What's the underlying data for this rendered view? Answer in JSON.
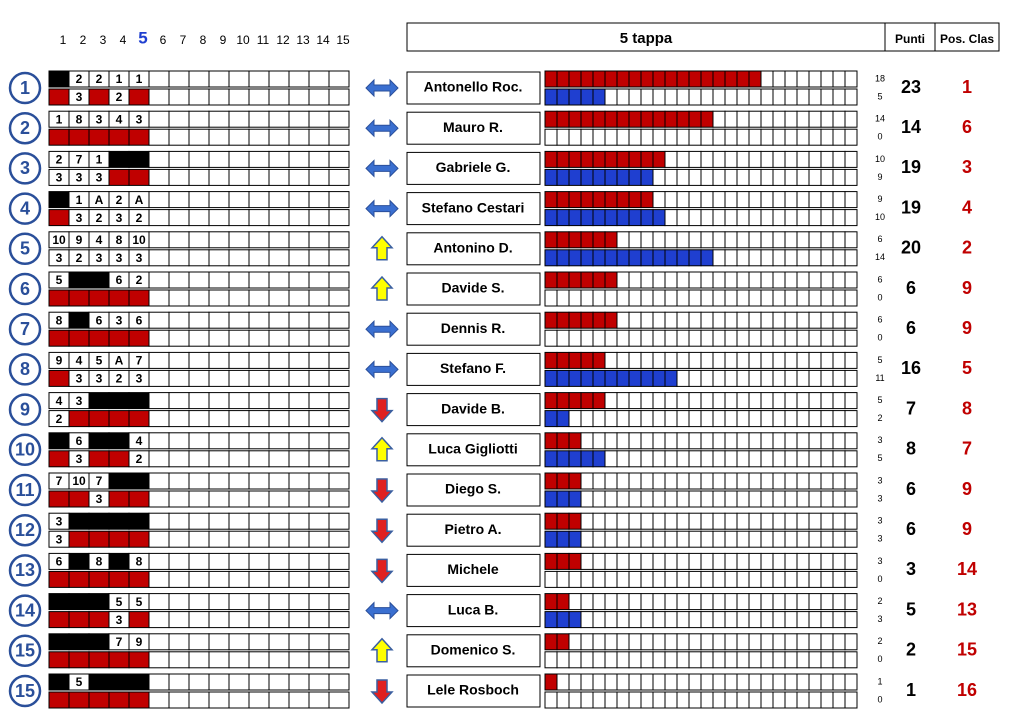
{
  "header": {
    "tappe": [
      1,
      2,
      3,
      4,
      5,
      6,
      7,
      8,
      9,
      10,
      11,
      12,
      13,
      14,
      15
    ],
    "title": "5 tappa",
    "punti": "Punti",
    "pos": "Pos. Clas"
  },
  "top_fill": "#000000",
  "bottom_fill": "#c00000",
  "red_color": "#c00000",
  "blue_color": "#1f3fd0",
  "rows": [
    {
      "rank": 1,
      "top": [
        null,
        "2",
        "2",
        "1",
        "1"
      ],
      "bottom": [
        null,
        "3",
        null,
        "2",
        null
      ],
      "arrow": "both",
      "name": "Antonello Roc.",
      "red": 18,
      "blue": 5,
      "punti": 23,
      "pos": 1
    },
    {
      "rank": 2,
      "top": [
        "1",
        "8",
        "3",
        "4",
        "3"
      ],
      "bottom": [
        null,
        null,
        null,
        null,
        null
      ],
      "arrow": "both",
      "name": "Mauro R.",
      "red": 14,
      "blue": 0,
      "punti": 14,
      "pos": 6
    },
    {
      "rank": 3,
      "top": [
        "2",
        "7",
        "1",
        null,
        null
      ],
      "bottom": [
        "3",
        "3",
        "3",
        null,
        null
      ],
      "arrow": "both",
      "name": "Gabriele G.",
      "red": 10,
      "blue": 9,
      "punti": 19,
      "pos": 3
    },
    {
      "rank": 4,
      "top": [
        null,
        "1",
        "A",
        "2",
        "A"
      ],
      "bottom": [
        null,
        "3",
        "2",
        "3",
        "2"
      ],
      "arrow": "both",
      "name": "Stefano Cestari",
      "red": 9,
      "blue": 10,
      "punti": 19,
      "pos": 4
    },
    {
      "rank": 5,
      "top": [
        "10",
        "9",
        "4",
        "8",
        "10"
      ],
      "bottom": [
        "3",
        "2",
        "3",
        "3",
        "3"
      ],
      "arrow": "up",
      "name": "Antonino D.",
      "red": 6,
      "blue": 14,
      "punti": 20,
      "pos": 2
    },
    {
      "rank": 6,
      "top": [
        "5",
        null,
        null,
        "6",
        "2"
      ],
      "bottom": [
        null,
        null,
        null,
        null,
        null
      ],
      "arrow": "up",
      "name": "Davide S.",
      "red": 6,
      "blue": 0,
      "punti": 6,
      "pos": 9
    },
    {
      "rank": 7,
      "top": [
        "8",
        null,
        "6",
        "3",
        "6"
      ],
      "bottom": [
        null,
        null,
        null,
        null,
        null
      ],
      "arrow": "both",
      "name": "Dennis R.",
      "red": 6,
      "blue": 0,
      "punti": 6,
      "pos": 9
    },
    {
      "rank": 8,
      "top": [
        "9",
        "4",
        "5",
        "A",
        "7"
      ],
      "bottom": [
        null,
        "3",
        "3",
        "2",
        "3"
      ],
      "arrow": "both",
      "name": "Stefano F.",
      "red": 5,
      "blue": 11,
      "punti": 16,
      "pos": 5
    },
    {
      "rank": 9,
      "top": [
        "4",
        "3",
        null,
        null,
        null
      ],
      "bottom": [
        "2",
        null,
        null,
        null,
        null
      ],
      "arrow": "down",
      "name": "Davide B.",
      "red": 5,
      "blue": 2,
      "punti": 7,
      "pos": 8
    },
    {
      "rank": 10,
      "top": [
        null,
        "6",
        null,
        null,
        "4"
      ],
      "bottom": [
        null,
        "3",
        null,
        null,
        "2"
      ],
      "arrow": "up",
      "name": "Luca Gigliotti",
      "red": 3,
      "blue": 5,
      "punti": 8,
      "pos": 7
    },
    {
      "rank": 11,
      "top": [
        "7",
        "10",
        "7",
        null,
        null
      ],
      "bottom": [
        null,
        null,
        "3",
        null,
        null
      ],
      "arrow": "down",
      "name": "Diego S.",
      "red": 3,
      "blue": 3,
      "punti": 6,
      "pos": 9
    },
    {
      "rank": 12,
      "top": [
        "3",
        null,
        null,
        null,
        null
      ],
      "bottom": [
        "3",
        null,
        null,
        null,
        null
      ],
      "arrow": "down",
      "name": "Pietro A.",
      "red": 3,
      "blue": 3,
      "punti": 6,
      "pos": 9
    },
    {
      "rank": 13,
      "top": [
        "6",
        null,
        "8",
        null,
        "8"
      ],
      "bottom": [
        null,
        null,
        null,
        null,
        null
      ],
      "arrow": "down",
      "name": "Michele",
      "red": 3,
      "blue": 0,
      "punti": 3,
      "pos": 14
    },
    {
      "rank": 14,
      "top": [
        null,
        null,
        null,
        "5",
        "5"
      ],
      "bottom": [
        null,
        null,
        null,
        "3",
        null
      ],
      "arrow": "both",
      "name": "Luca B.",
      "red": 2,
      "blue": 3,
      "punti": 5,
      "pos": 13
    },
    {
      "rank": 15,
      "top": [
        null,
        null,
        null,
        "7",
        "9"
      ],
      "bottom": [
        null,
        null,
        null,
        null,
        null
      ],
      "arrow": "up",
      "name": "Domenico S.",
      "red": 2,
      "blue": 0,
      "punti": 2,
      "pos": 15
    },
    {
      "rank": 15,
      "top": [
        null,
        "5",
        null,
        null,
        null
      ],
      "bottom": [
        null,
        null,
        null,
        null,
        null
      ],
      "arrow": "down",
      "name": "Lele Rosboch",
      "red": 1,
      "blue": 0,
      "punti": 1,
      "pos": 16
    }
  ]
}
